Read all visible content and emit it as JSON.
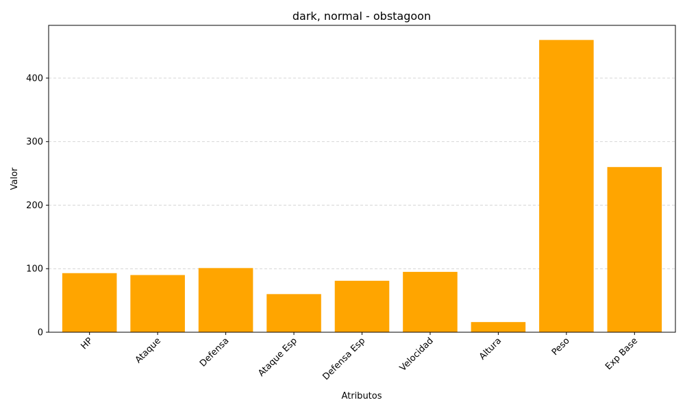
{
  "chart_data": {
    "type": "bar",
    "title": "dark, normal - obstagoon",
    "xlabel": "Atributos",
    "ylabel": "Valor",
    "categories": [
      "HP",
      "Ataque",
      "Defensa",
      "Ataque Esp",
      "Defensa Esp",
      "Velocidad",
      "Altura",
      "Peso",
      "Exp Base"
    ],
    "values": [
      93,
      90,
      101,
      60,
      81,
      95,
      16,
      460,
      260
    ],
    "ylim": [
      0,
      483
    ],
    "yticks": [
      0,
      100,
      200,
      300,
      400
    ],
    "bar_color": "#FFA500",
    "grid": "y-dashed"
  }
}
